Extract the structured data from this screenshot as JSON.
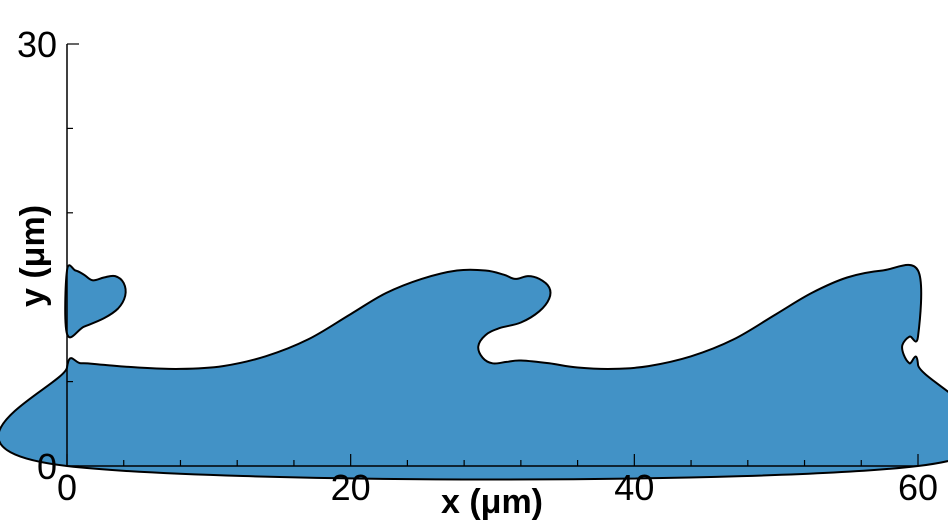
{
  "chart_data": {
    "type": "area",
    "xlabel": "x (μm)",
    "ylabel": "y (μm)",
    "xlim": [
      0,
      60
    ],
    "ylim": [
      0,
      30
    ],
    "x_ticks": [
      {
        "value": 0,
        "label": "0"
      },
      {
        "value": 20,
        "label": "20"
      },
      {
        "value": 40,
        "label": "40"
      },
      {
        "value": 60,
        "label": "60"
      }
    ],
    "x_minor_ticks": [
      4,
      8,
      12,
      16,
      24,
      28,
      32,
      36,
      44,
      48,
      52,
      56
    ],
    "y_ticks": [
      {
        "value": 0,
        "label": "0"
      },
      {
        "value": 30,
        "label": "30"
      }
    ],
    "y_minor_ticks": [
      6,
      18,
      24
    ],
    "grid": false,
    "fill_color": "#4292c6",
    "outline_color": "#000000",
    "series": [
      {
        "kind": "main-fluid-region",
        "boundary": [
          [
            0,
            0
          ],
          [
            0,
            7.0
          ],
          [
            1.0,
            7.3
          ],
          [
            2.5,
            7.2
          ],
          [
            5.0,
            7.0
          ],
          [
            8.0,
            6.9
          ],
          [
            11.0,
            7.1
          ],
          [
            14.0,
            7.8
          ],
          [
            17.0,
            9.0
          ],
          [
            20.0,
            10.8
          ],
          [
            22.5,
            12.3
          ],
          [
            25.0,
            13.3
          ],
          [
            27.5,
            13.9
          ],
          [
            29.5,
            13.9
          ],
          [
            30.8,
            13.6
          ],
          [
            31.6,
            13.3
          ],
          [
            32.5,
            13.5
          ],
          [
            33.3,
            13.3
          ],
          [
            34.0,
            12.7
          ],
          [
            34.0,
            11.9
          ],
          [
            33.3,
            11.0
          ],
          [
            32.0,
            10.2
          ],
          [
            30.5,
            9.8
          ],
          [
            29.5,
            9.3
          ],
          [
            29.0,
            8.5
          ],
          [
            29.3,
            7.7
          ],
          [
            30.0,
            7.3
          ],
          [
            31.0,
            7.4
          ],
          [
            32.0,
            7.5
          ],
          [
            34.0,
            7.3
          ],
          [
            36.0,
            7.0
          ],
          [
            38.5,
            6.9
          ],
          [
            41.0,
            7.1
          ],
          [
            44.0,
            7.8
          ],
          [
            47.0,
            9.0
          ],
          [
            50.0,
            10.8
          ],
          [
            52.5,
            12.3
          ],
          [
            55.0,
            13.4
          ],
          [
            57.5,
            13.9
          ],
          [
            60.0,
            13.9
          ],
          [
            60.0,
            9.2
          ],
          [
            59.4,
            9.2
          ],
          [
            58.9,
            8.6
          ],
          [
            59.0,
            7.9
          ],
          [
            59.4,
            7.3
          ],
          [
            60.0,
            7.2
          ],
          [
            60.0,
            0
          ]
        ]
      },
      {
        "kind": "detached-crest",
        "boundary": [
          [
            0,
            9.4
          ],
          [
            1.2,
            9.9
          ],
          [
            2.6,
            10.5
          ],
          [
            3.6,
            11.2
          ],
          [
            4.1,
            12.1
          ],
          [
            4.0,
            13.0
          ],
          [
            3.4,
            13.5
          ],
          [
            2.6,
            13.4
          ],
          [
            1.8,
            13.2
          ],
          [
            1.2,
            13.6
          ],
          [
            0.6,
            13.9
          ],
          [
            0,
            13.9
          ]
        ]
      }
    ]
  }
}
